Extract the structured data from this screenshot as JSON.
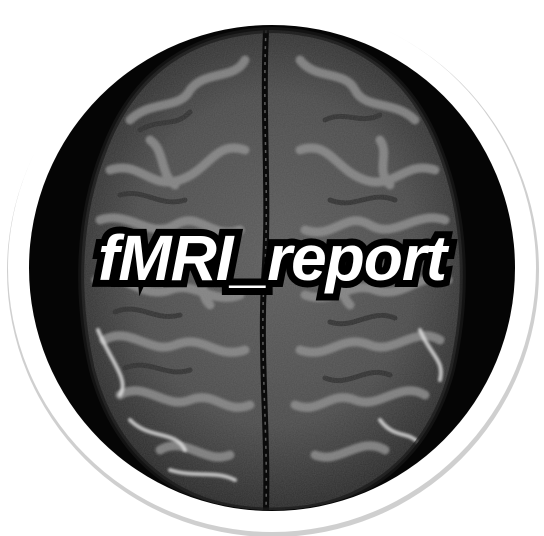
{
  "logo": {
    "title": "fMRI_report",
    "image_subject": "axial-brain-mri-slice",
    "colors": {
      "sticker_border": "#ffffff",
      "sticker_shadow": "#cfcfcf",
      "scan_background": "#050505",
      "gray_matter": "#6e6e6e",
      "white_matter": "#3a3a3a",
      "csf_highlight": "#e8e8e8",
      "text_fill": "#ffffff",
      "text_outline": "#000000"
    }
  }
}
